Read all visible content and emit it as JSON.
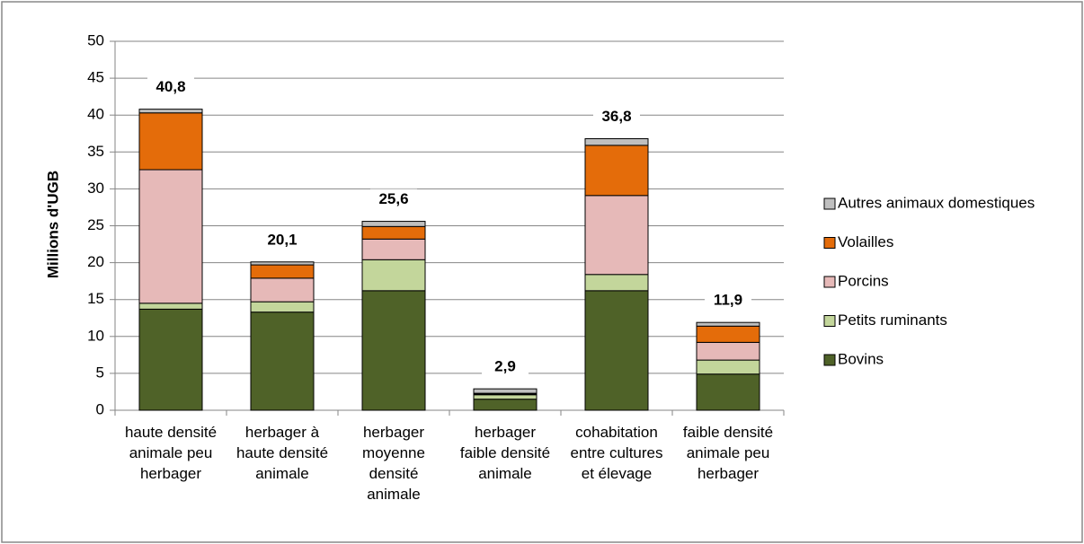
{
  "chart_data": {
    "type": "stacked_bar",
    "y_label": "Millions d'UGB",
    "categories": [
      "haute densité\nanimale peu\nherbager",
      "herbager à\nhaute densité\nanimale",
      "herbager\nmoyenne\ndensité\nanimale",
      "herbager\nfaible densité\nanimale",
      "cohabitation\nentre cultures\net élevage",
      "faible densité\nanimale peu\nherbager"
    ],
    "series": [
      {
        "name": "Bovins",
        "color": "#4f6228",
        "values": [
          13.7,
          13.3,
          16.2,
          1.5,
          16.2,
          4.9
        ]
      },
      {
        "name": "Petits ruminants",
        "color": "#c3d69b",
        "values": [
          0.8,
          1.4,
          4.2,
          0.6,
          2.2,
          1.9
        ]
      },
      {
        "name": "Porcins",
        "color": "#e6b9b8",
        "values": [
          18.1,
          3.2,
          2.8,
          0.1,
          10.7,
          2.4
        ]
      },
      {
        "name": "Volailles",
        "color": "#e46c0a",
        "values": [
          7.7,
          1.8,
          1.7,
          0.1,
          6.8,
          2.2
        ]
      },
      {
        "name": "Autres animaux domestiques",
        "color": "#bfbfbf",
        "values": [
          0.5,
          0.4,
          0.7,
          0.6,
          0.9,
          0.5
        ]
      }
    ],
    "totals": [
      40.8,
      20.1,
      25.6,
      2.9,
      36.8,
      11.9
    ],
    "total_labels": [
      "40,8",
      "20,1",
      "25,6",
      "2,9",
      "36,8",
      "11,9"
    ],
    "ylim": [
      0,
      50
    ],
    "yticks": [
      0,
      5,
      10,
      15,
      20,
      25,
      30,
      35,
      40,
      45,
      50
    ],
    "grid": true
  }
}
